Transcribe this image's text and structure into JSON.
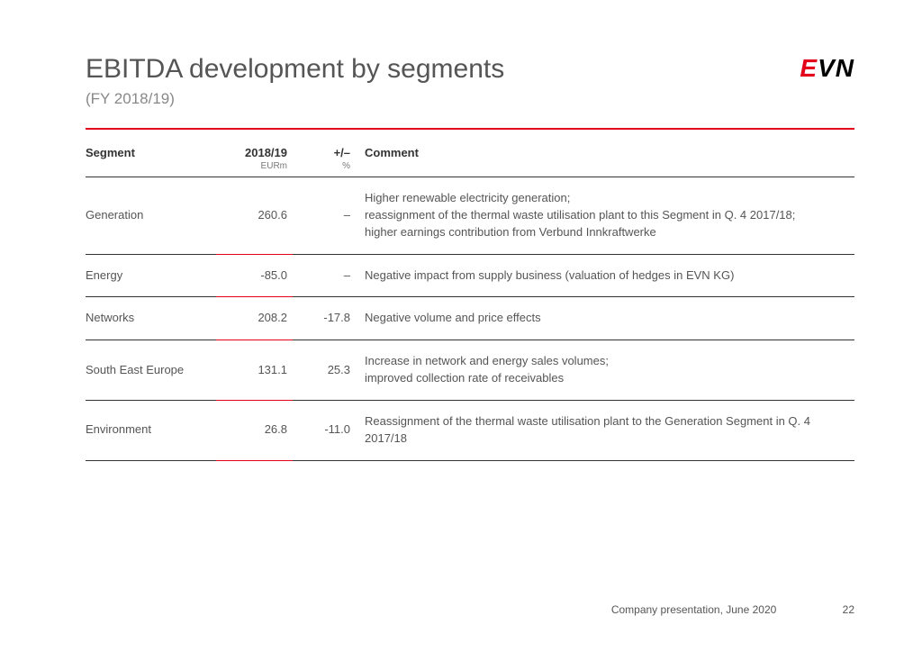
{
  "logo": {
    "e": "E",
    "vn": "VN"
  },
  "title": "EBITDA development by segments",
  "subtitle": "(FY 2018/19)",
  "table": {
    "columns": {
      "segment": "Segment",
      "value": "2018/19",
      "value_unit": "EURm",
      "change": "+/–",
      "change_unit": "%",
      "comment": "Comment"
    },
    "rows": [
      {
        "segment": "Generation",
        "value": "260.6",
        "change": "–",
        "comment": "Higher renewable electricity generation;\nreassignment of the thermal waste utilisation plant to this Segment in Q. 4 2017/18;\nhigher earnings contribution from Verbund Innkraftwerke"
      },
      {
        "segment": "Energy",
        "value": "-85.0",
        "change": "–",
        "comment": "Negative impact from supply business (valuation of hedges in EVN KG)"
      },
      {
        "segment": "Networks",
        "value": "208.2",
        "change": "-17.8",
        "comment": "Negative volume and price effects"
      },
      {
        "segment": "South East Europe",
        "value": "131.1",
        "change": "25.3",
        "comment": "Increase in network and energy sales volumes;\nimproved collection rate of receivables"
      },
      {
        "segment": "Environment",
        "value": "26.8",
        "change": "-11.0",
        "comment": "Reassignment of the thermal waste utilisation plant to the Generation Segment in Q. 4 2017/18"
      }
    ]
  },
  "footer": {
    "text": "Company presentation, June 2020",
    "page": "22"
  },
  "colors": {
    "accent": "#e2001a",
    "text": "#555",
    "rule": "#333"
  }
}
